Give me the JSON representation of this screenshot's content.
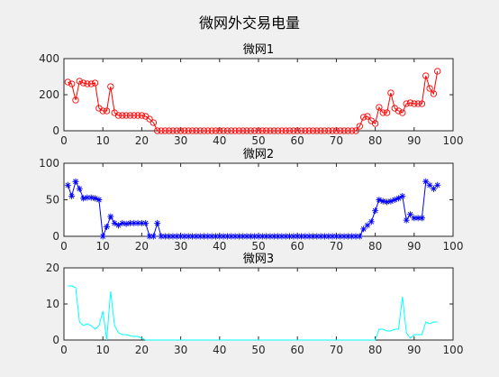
{
  "figure": {
    "title": "微网外交易电量",
    "background": "#f0f0f0"
  },
  "chart_data": [
    {
      "type": "line",
      "title": "微网1",
      "xlim": [
        0,
        100
      ],
      "ylim": [
        0,
        400
      ],
      "xticks": [
        0,
        10,
        20,
        30,
        40,
        50,
        60,
        70,
        80,
        90,
        100
      ],
      "yticks": [
        0,
        200,
        400
      ],
      "marker": "circle",
      "color": "#ff0000",
      "x": [
        1,
        2,
        3,
        4,
        5,
        6,
        7,
        8,
        9,
        10,
        11,
        12,
        13,
        14,
        15,
        16,
        17,
        18,
        19,
        20,
        21,
        22,
        23,
        24,
        25,
        26,
        27,
        28,
        29,
        30,
        31,
        32,
        33,
        34,
        35,
        36,
        37,
        38,
        39,
        40,
        41,
        42,
        43,
        44,
        45,
        46,
        47,
        48,
        49,
        50,
        51,
        52,
        53,
        54,
        55,
        56,
        57,
        58,
        59,
        60,
        61,
        62,
        63,
        64,
        65,
        66,
        67,
        68,
        69,
        70,
        71,
        72,
        73,
        74,
        75,
        76,
        77,
        78,
        79,
        80,
        81,
        82,
        83,
        84,
        85,
        86,
        87,
        88,
        89,
        90,
        91,
        92,
        93,
        94,
        95,
        96
      ],
      "y": [
        270,
        260,
        170,
        275,
        265,
        260,
        260,
        265,
        125,
        110,
        110,
        245,
        100,
        85,
        85,
        85,
        85,
        85,
        85,
        85,
        80,
        65,
        45,
        0,
        0,
        0,
        0,
        0,
        0,
        0,
        0,
        0,
        0,
        0,
        0,
        0,
        0,
        0,
        0,
        0,
        0,
        0,
        0,
        0,
        0,
        0,
        0,
        0,
        0,
        0,
        0,
        0,
        0,
        0,
        0,
        0,
        0,
        0,
        0,
        0,
        0,
        0,
        0,
        0,
        0,
        0,
        0,
        0,
        0,
        0,
        0,
        0,
        0,
        0,
        0,
        25,
        75,
        80,
        55,
        40,
        130,
        100,
        100,
        210,
        125,
        110,
        100,
        150,
        155,
        150,
        150,
        150,
        305,
        235,
        205,
        330
      ]
    },
    {
      "type": "line",
      "title": "微网2",
      "xlim": [
        0,
        100
      ],
      "ylim": [
        0,
        100
      ],
      "xticks": [
        0,
        10,
        20,
        30,
        40,
        50,
        60,
        70,
        80,
        90,
        100
      ],
      "yticks": [
        0,
        50,
        100
      ],
      "marker": "asterisk",
      "color": "#0000ff",
      "x": [
        1,
        2,
        3,
        4,
        5,
        6,
        7,
        8,
        9,
        10,
        11,
        12,
        13,
        14,
        15,
        16,
        17,
        18,
        19,
        20,
        21,
        22,
        23,
        24,
        25,
        26,
        27,
        28,
        29,
        30,
        31,
        32,
        33,
        34,
        35,
        36,
        37,
        38,
        39,
        40,
        41,
        42,
        43,
        44,
        45,
        46,
        47,
        48,
        49,
        50,
        51,
        52,
        53,
        54,
        55,
        56,
        57,
        58,
        59,
        60,
        61,
        62,
        63,
        64,
        65,
        66,
        67,
        68,
        69,
        70,
        71,
        72,
        73,
        74,
        75,
        76,
        77,
        78,
        79,
        80,
        81,
        82,
        83,
        84,
        85,
        86,
        87,
        88,
        89,
        90,
        91,
        92,
        93,
        94,
        95,
        96
      ],
      "y": [
        70,
        55,
        75,
        65,
        52,
        53,
        53,
        52,
        50,
        0,
        13,
        27,
        18,
        15,
        18,
        17,
        18,
        18,
        18,
        18,
        18,
        0,
        0,
        18,
        0,
        0,
        0,
        0,
        0,
        0,
        0,
        0,
        0,
        0,
        0,
        0,
        0,
        0,
        0,
        0,
        0,
        0,
        0,
        0,
        0,
        0,
        0,
        0,
        0,
        0,
        0,
        0,
        0,
        0,
        0,
        0,
        0,
        0,
        0,
        0,
        0,
        0,
        0,
        0,
        0,
        0,
        0,
        0,
        0,
        0,
        0,
        0,
        0,
        0,
        0,
        0,
        10,
        15,
        20,
        35,
        50,
        48,
        47,
        48,
        50,
        52,
        55,
        22,
        30,
        25,
        25,
        25,
        75,
        70,
        65,
        70
      ]
    },
    {
      "type": "line",
      "title": "微网3",
      "xlim": [
        0,
        100
      ],
      "ylim": [
        0,
        20
      ],
      "xticks": [
        0,
        10,
        20,
        30,
        40,
        50,
        60,
        70,
        80,
        90,
        100
      ],
      "yticks": [
        0,
        10,
        20
      ],
      "marker": "none",
      "color": "#00ffff",
      "x": [
        1,
        2,
        3,
        4,
        5,
        6,
        7,
        8,
        9,
        10,
        11,
        12,
        13,
        14,
        15,
        16,
        17,
        18,
        19,
        20,
        21,
        22,
        23,
        24,
        25,
        26,
        27,
        28,
        29,
        30,
        31,
        32,
        33,
        34,
        35,
        36,
        37,
        38,
        39,
        40,
        41,
        42,
        43,
        44,
        45,
        46,
        47,
        48,
        49,
        50,
        51,
        52,
        53,
        54,
        55,
        56,
        57,
        58,
        59,
        60,
        61,
        62,
        63,
        64,
        65,
        66,
        67,
        68,
        69,
        70,
        71,
        72,
        73,
        74,
        75,
        76,
        77,
        78,
        79,
        80,
        81,
        82,
        83,
        84,
        85,
        86,
        87,
        88,
        89,
        90,
        91,
        92,
        93,
        94,
        95,
        96
      ],
      "y": [
        15,
        15,
        14.5,
        5,
        4,
        4.5,
        4,
        3,
        4,
        8,
        0,
        13.5,
        4,
        2,
        1.5,
        1.5,
        1.2,
        1,
        1,
        0.5,
        0,
        0,
        0,
        0,
        0,
        0,
        0,
        0,
        0,
        0,
        0,
        0,
        0,
        0,
        0,
        0,
        0,
        0,
        0,
        0,
        0,
        0,
        0,
        0,
        0,
        0,
        0,
        0,
        0,
        0,
        0,
        0,
        0,
        0,
        0,
        0,
        0,
        0,
        0,
        0,
        0,
        0,
        0,
        0,
        0,
        0,
        0,
        0,
        0,
        0,
        0,
        0,
        0,
        0,
        0,
        0,
        0,
        0,
        0,
        0,
        3,
        3,
        2.5,
        2.5,
        3,
        3,
        12,
        2,
        0.5,
        1.5,
        1.5,
        1.5,
        5,
        4.5,
        5,
        5
      ]
    }
  ]
}
